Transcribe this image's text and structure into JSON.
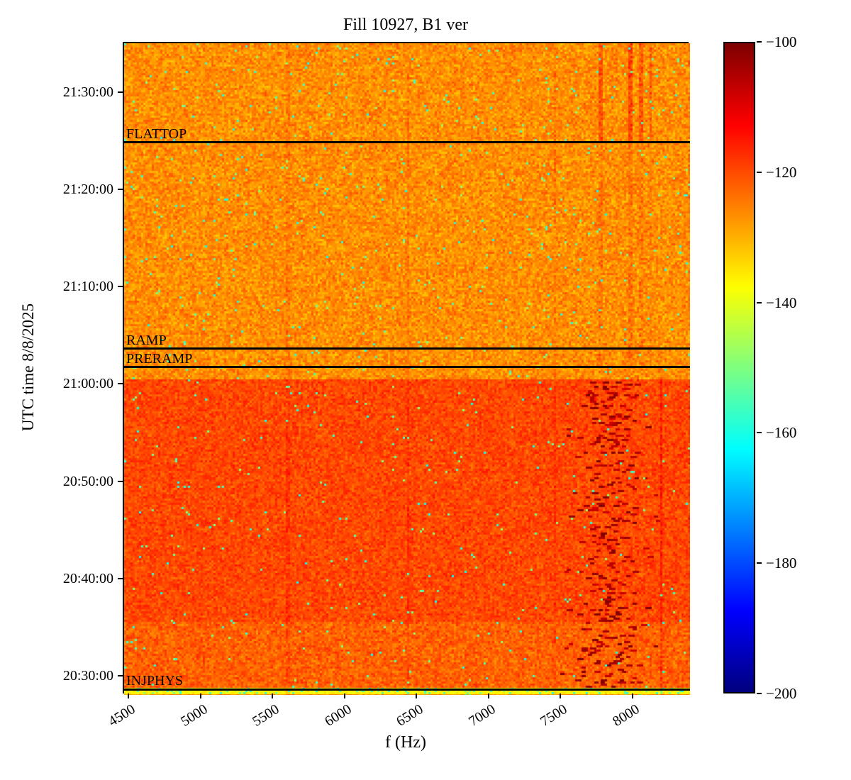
{
  "chart_data": {
    "type": "heatmap",
    "subtype": "spectrogram",
    "title": "Fill 10927, B1 ver",
    "xlabel": "f (Hz)",
    "ylabel": "UTC time 8/8/2025",
    "grid": false,
    "x_axis": {
      "f_min": 4460,
      "f_max": 8390,
      "ticks": [
        {
          "label": "4500",
          "value": 4500
        },
        {
          "label": "5000",
          "value": 5000
        },
        {
          "label": "5500",
          "value": 5500
        },
        {
          "label": "6000",
          "value": 6000
        },
        {
          "label": "6500",
          "value": 6500
        },
        {
          "label": "7000",
          "value": 7000
        },
        {
          "label": "7500",
          "value": 7500
        },
        {
          "label": "8000",
          "value": 8000
        }
      ]
    },
    "y_axis": {
      "top_time": "21:35:10",
      "bottom_time": "20:28:10",
      "ticks": [
        {
          "label": "21:30:00",
          "time": "21:30:00"
        },
        {
          "label": "21:20:00",
          "time": "21:20:00"
        },
        {
          "label": "21:10:00",
          "time": "21:10:00"
        },
        {
          "label": "21:00:00",
          "time": "21:00:00"
        },
        {
          "label": "20:50:00",
          "time": "20:50:00"
        },
        {
          "label": "20:40:00",
          "time": "20:40:00"
        },
        {
          "label": "20:30:00",
          "time": "20:30:00"
        }
      ]
    },
    "colorbar": {
      "colormap": "jet",
      "vmin": -200,
      "vmax": -100,
      "ticks": [
        {
          "label": "−100",
          "value": -100
        },
        {
          "label": "−120",
          "value": -120
        },
        {
          "label": "−140",
          "value": -140
        },
        {
          "label": "−160",
          "value": -160
        },
        {
          "label": "−180",
          "value": -180
        },
        {
          "label": "−200",
          "value": -200
        }
      ]
    },
    "annotations": [
      {
        "label": "FLATTOP",
        "time": "21:25:00"
      },
      {
        "label": "RAMP",
        "time": "21:03:45"
      },
      {
        "label": "PRERAMP",
        "time": "21:01:52"
      },
      {
        "label": "INJPHYS",
        "time": "20:28:45"
      }
    ],
    "bands": [
      {
        "name": "post-preramp-upper",
        "t_from": "21:00:40",
        "t_to": "21:35:10",
        "base_db": -126.5,
        "spread_db": 6.5,
        "speckle_prob": 0.012
      },
      {
        "name": "pre-ramp-middle",
        "t_from": "20:35:40",
        "t_to": "21:00:40",
        "base_db": -119.5,
        "spread_db": 5.5,
        "speckle_prob": 0.008
      },
      {
        "name": "injection-lower",
        "t_from": "20:28:50",
        "t_to": "20:35:40",
        "base_db": -122.0,
        "spread_db": 6.0,
        "speckle_prob": 0.01
      },
      {
        "name": "injphys-bottom-stripe",
        "t_from": "20:28:10",
        "t_to": "20:28:50",
        "base_db": -137.0,
        "spread_db": 4.0,
        "speckle_prob": 0.12
      }
    ],
    "vertical_streaks": [
      {
        "f": 7770,
        "width_hz": 30,
        "delta_db": 6.0,
        "region": "above_flattop"
      },
      {
        "f": 7980,
        "width_hz": 30,
        "delta_db": 7.0,
        "region": "above_flattop"
      },
      {
        "f": 8050,
        "width_hz": 25,
        "delta_db": 5.0,
        "region": "above_flattop"
      },
      {
        "f": 8120,
        "width_hz": 22,
        "delta_db": 4.5,
        "region": "above_flattop"
      },
      {
        "f": 5600,
        "width_hz": 22,
        "delta_db": 2.0,
        "region": "full"
      },
      {
        "f": 6430,
        "width_hz": 22,
        "delta_db": 2.5,
        "region": "full"
      },
      {
        "f": 7450,
        "width_hz": 22,
        "delta_db": 2.0,
        "region": "full"
      },
      {
        "f": 8190,
        "width_hz": 28,
        "delta_db": 4.5,
        "region": "below_preramp"
      }
    ],
    "hot_speckle_cluster": {
      "f_center": 7820,
      "f_sigma": 170,
      "time_from": "20:28:50",
      "time_to": "21:00:40",
      "max_prob": 0.1,
      "value_db_min": -108,
      "value_db_max": -100
    },
    "speckle_db_min": -162,
    "speckle_db_max": -148
  }
}
